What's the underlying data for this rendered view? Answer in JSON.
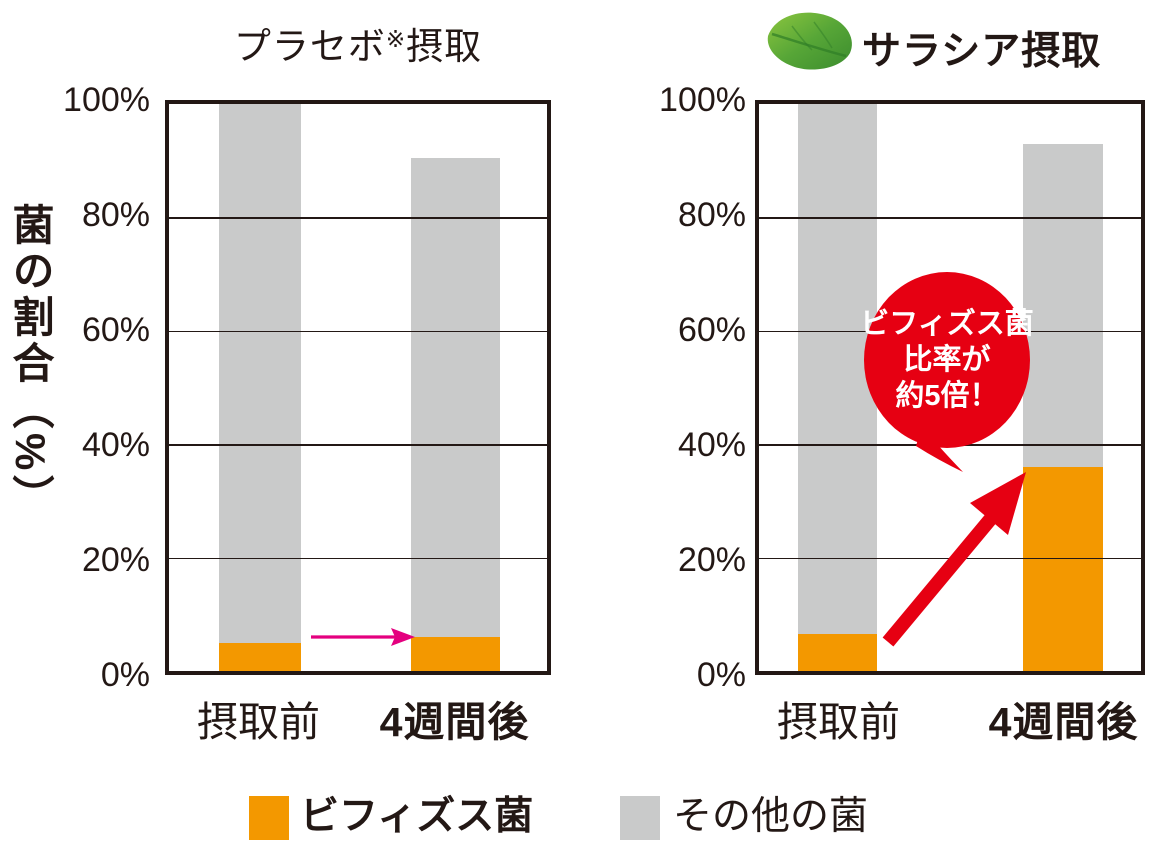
{
  "colors": {
    "bifidus_orange": "#F39800",
    "other_gray": "#C9CACA",
    "accent_red": "#E60012",
    "pink_arrow": "#E4007F",
    "ink_black": "#231815",
    "callout_text": "#ffffff",
    "leaf_green_light": "#8CC63F",
    "leaf_green_dark": "#3B8C2E"
  },
  "y_axis": {
    "title": "菌の割合（%）",
    "ticks": [
      "100%",
      "80%",
      "60%",
      "40%",
      "20%",
      "0%"
    ]
  },
  "left_chart": {
    "title_main": "プラセボ",
    "title_note": "※",
    "title_suffix": "摂取"
  },
  "right_chart": {
    "title": "サラシア摂取"
  },
  "x_labels": [
    "摂取前",
    "4週間後"
  ],
  "callout": {
    "lines": [
      "ビフィズス菌",
      "比率が",
      "約5倍！"
    ]
  },
  "legend": {
    "items": [
      {
        "label": "ビフィズス菌",
        "color": "#F39800",
        "bold": true
      },
      {
        "label": "その他の菌",
        "color": "#C9CACA",
        "bold": false
      }
    ]
  },
  "chart_data": [
    {
      "type": "bar",
      "stacked": true,
      "title": "プラセボ※摂取",
      "categories": [
        "摂取前",
        "4週間後"
      ],
      "series": [
        {
          "name": "ビフィズス菌",
          "color": "#F39800",
          "values": [
            5,
            6
          ]
        },
        {
          "name": "その他の菌",
          "color": "#C9CACA",
          "values": [
            95,
            84.5
          ]
        }
      ],
      "stack_totals_pct": [
        100,
        90.5
      ],
      "ylabel": "菌の割合（%）",
      "ylim": [
        0,
        100
      ],
      "yticks": [
        "0%",
        "20%",
        "40%",
        "60%",
        "80%",
        "100%"
      ],
      "grid": true,
      "annotations": [
        {
          "type": "arrow",
          "color": "#E4007F",
          "from_category": "摂取前",
          "to_category": "4週間後",
          "direction": "horizontal-right",
          "at_pct": 7
        }
      ]
    },
    {
      "type": "bar",
      "stacked": true,
      "title": "サラシア摂取",
      "categories": [
        "摂取前",
        "4週間後"
      ],
      "series": [
        {
          "name": "ビフィズス菌",
          "color": "#F39800",
          "values": [
            6.5,
            36
          ]
        },
        {
          "name": "その他の菌",
          "color": "#C9CACA",
          "values": [
            93.5,
            57
          ]
        }
      ],
      "stack_totals_pct": [
        100,
        93
      ],
      "ylabel": "菌の割合（%）",
      "ylim": [
        0,
        100
      ],
      "yticks": [
        "0%",
        "20%",
        "40%",
        "60%",
        "80%",
        "100%"
      ],
      "grid": true,
      "annotations": [
        {
          "type": "arrow",
          "color": "#E60012",
          "from_category": "摂取前",
          "to_category": "4週間後",
          "direction": "diagonal-up-right",
          "from_pct": 7,
          "to_pct": 36
        },
        {
          "type": "callout-bubble",
          "shape": "circle",
          "fill": "#E60012",
          "text": "ビフィズス菌比率が約5倍！",
          "text_color": "#ffffff"
        }
      ]
    }
  ]
}
